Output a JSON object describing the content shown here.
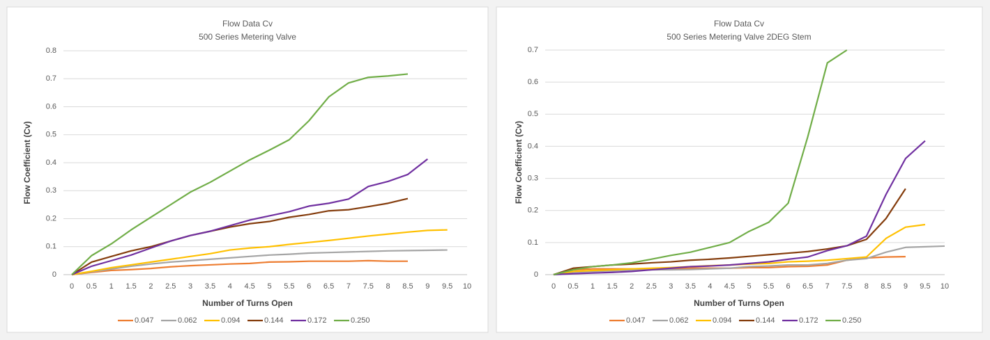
{
  "chart_data": [
    {
      "type": "line",
      "title": "Flow Data Cv",
      "subtitle": "500 Series Metering Valve",
      "x_label": "Number of Turns Open",
      "y_label": "Flow Coefficient (Cv)",
      "x": [
        0,
        0.5,
        1,
        1.5,
        2,
        2.5,
        3,
        3.5,
        4,
        4.5,
        5,
        5.5,
        6,
        6.5,
        7,
        7.5,
        8,
        8.5,
        9,
        9.5,
        10
      ],
      "xlim": [
        0,
        10
      ],
      "ylim": [
        0,
        0.8
      ],
      "yticks": [
        0,
        0.1,
        0.2,
        0.3,
        0.4,
        0.5,
        0.6,
        0.7,
        0.8
      ],
      "grid": true,
      "legend": "bottom",
      "series": [
        {
          "name": "0.047",
          "color": "#ed7d31",
          "values": [
            0,
            0.008,
            0.015,
            0.018,
            0.022,
            0.028,
            0.032,
            0.035,
            0.038,
            0.04,
            0.045,
            0.046,
            0.048,
            0.048,
            0.048,
            0.05,
            0.048,
            0.048,
            null,
            null,
            null
          ]
        },
        {
          "name": "0.062",
          "color": "#a5a5a5",
          "values": [
            0,
            0.01,
            0.02,
            0.03,
            0.038,
            0.045,
            0.05,
            0.055,
            0.06,
            0.065,
            0.07,
            0.073,
            0.077,
            0.079,
            0.081,
            0.083,
            0.085,
            0.086,
            0.087,
            0.088,
            null
          ]
        },
        {
          "name": "0.094",
          "color": "#ffc000",
          "values": [
            0,
            0.012,
            0.025,
            0.035,
            0.045,
            0.055,
            0.065,
            0.075,
            0.088,
            0.095,
            0.1,
            0.108,
            0.115,
            0.122,
            0.13,
            0.138,
            0.145,
            0.152,
            0.158,
            0.16,
            null
          ]
        },
        {
          "name": "0.144",
          "color": "#843c0c",
          "values": [
            0,
            0.045,
            0.065,
            0.085,
            0.1,
            0.12,
            0.14,
            0.155,
            0.17,
            0.182,
            0.19,
            0.205,
            0.215,
            0.228,
            0.232,
            0.243,
            0.255,
            0.272,
            null,
            null,
            null
          ]
        },
        {
          "name": "0.172",
          "color": "#7030a0",
          "values": [
            0,
            0.03,
            0.05,
            0.07,
            0.095,
            0.12,
            0.14,
            0.155,
            0.175,
            0.195,
            0.21,
            0.225,
            0.245,
            0.255,
            0.27,
            0.315,
            0.333,
            0.358,
            0.413,
            null,
            null
          ]
        },
        {
          "name": "0.250",
          "color": "#70ad47",
          "values": [
            0,
            0.068,
            0.11,
            0.16,
            0.205,
            0.25,
            0.295,
            0.33,
            0.37,
            0.41,
            0.445,
            0.482,
            0.55,
            0.635,
            0.685,
            0.705,
            0.71,
            0.717,
            null,
            null,
            null
          ]
        }
      ]
    },
    {
      "type": "line",
      "title": "Flow Data Cv",
      "subtitle": "500 Series Metering Valve 2DEG Stem",
      "x_label": "Number of Turns Open",
      "y_label": "Flow Coefficient (Cv)",
      "x": [
        0,
        0.5,
        1,
        1.5,
        2,
        2.5,
        3,
        3.5,
        4,
        4.5,
        5,
        5.5,
        6,
        6.5,
        7,
        7.5,
        8,
        8.5,
        9,
        9.5,
        10
      ],
      "xlim": [
        0,
        10
      ],
      "ylim": [
        0,
        0.7
      ],
      "yticks": [
        0,
        0.1,
        0.2,
        0.3,
        0.4,
        0.5,
        0.6,
        0.7
      ],
      "grid": true,
      "legend": "bottom",
      "series": [
        {
          "name": "0.047",
          "color": "#ed7d31",
          "values": [
            0,
            0.015,
            0.018,
            0.018,
            0.018,
            0.018,
            0.018,
            0.02,
            0.02,
            0.02,
            0.022,
            0.022,
            0.025,
            0.026,
            0.03,
            0.045,
            0.052,
            0.055,
            0.056,
            null,
            null
          ]
        },
        {
          "name": "0.062",
          "color": "#a5a5a5",
          "values": [
            0,
            0.008,
            0.01,
            0.012,
            0.014,
            0.015,
            0.015,
            0.016,
            0.018,
            0.02,
            0.025,
            0.027,
            0.03,
            0.03,
            0.035,
            0.045,
            0.05,
            0.07,
            0.085,
            0.087,
            0.089
          ]
        },
        {
          "name": "0.094",
          "color": "#ffc000",
          "values": [
            0,
            0.01,
            0.013,
            0.015,
            0.018,
            0.02,
            0.022,
            0.025,
            0.028,
            0.03,
            0.033,
            0.035,
            0.04,
            0.042,
            0.045,
            0.05,
            0.055,
            0.113,
            0.148,
            0.156,
            null
          ]
        },
        {
          "name": "0.144",
          "color": "#843c0c",
          "values": [
            0,
            0.02,
            0.025,
            0.03,
            0.033,
            0.037,
            0.04,
            0.045,
            0.048,
            0.052,
            0.057,
            0.062,
            0.067,
            0.072,
            0.08,
            0.09,
            0.11,
            0.175,
            0.268,
            null,
            null
          ]
        },
        {
          "name": "0.172",
          "color": "#7030a0",
          "values": [
            0,
            0.003,
            0.005,
            0.007,
            0.01,
            0.015,
            0.02,
            0.025,
            0.027,
            0.03,
            0.035,
            0.04,
            0.048,
            0.055,
            0.075,
            0.09,
            0.12,
            0.25,
            0.362,
            0.417,
            null
          ]
        },
        {
          "name": "0.250",
          "color": "#70ad47",
          "values": [
            0,
            0.015,
            0.025,
            0.03,
            0.037,
            0.048,
            0.06,
            0.07,
            0.085,
            0.1,
            0.135,
            0.163,
            0.223,
            0.43,
            0.66,
            0.7,
            null,
            null,
            null,
            null,
            null
          ]
        }
      ]
    }
  ]
}
